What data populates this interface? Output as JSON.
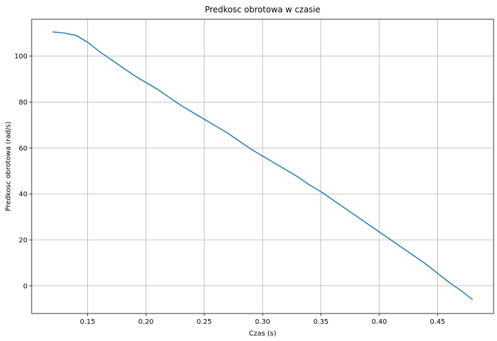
{
  "chart_data": {
    "type": "line",
    "title": "Predkosc obrotowa w czasie",
    "xlabel": "Czas (s)",
    "ylabel": "Predkosc obrotowa (rad/s)",
    "xlim": [
      0.102,
      0.498
    ],
    "ylim": [
      -12.0,
      116.0
    ],
    "xticks": [
      0.15,
      0.2,
      0.25,
      0.3,
      0.35,
      0.4,
      0.45
    ],
    "xtick_labels": [
      "0.15",
      "0.20",
      "0.25",
      "0.30",
      "0.35",
      "0.40",
      "0.45"
    ],
    "yticks": [
      0,
      20,
      40,
      60,
      80,
      100
    ],
    "ytick_labels": [
      "0",
      "20",
      "40",
      "60",
      "80",
      "100"
    ],
    "grid": true,
    "colors": {
      "line": "#1f77b4",
      "grid": "#b0b0b0",
      "axes": "#000000"
    },
    "series": [
      {
        "x": [
          0.12,
          0.13,
          0.14,
          0.145,
          0.15,
          0.16,
          0.17,
          0.18,
          0.19,
          0.2,
          0.21,
          0.22,
          0.23,
          0.24,
          0.25,
          0.26,
          0.27,
          0.28,
          0.29,
          0.3,
          0.31,
          0.32,
          0.33,
          0.34,
          0.35,
          0.36,
          0.37,
          0.38,
          0.39,
          0.4,
          0.41,
          0.42,
          0.43,
          0.44,
          0.45,
          0.46,
          0.47,
          0.48
        ],
        "y": [
          110.5,
          110.0,
          109.0,
          107.5,
          106.0,
          102.0,
          98.5,
          95.0,
          91.5,
          88.5,
          85.5,
          82.0,
          78.5,
          75.5,
          72.5,
          69.5,
          66.5,
          63.0,
          59.5,
          56.5,
          53.5,
          50.5,
          47.5,
          44.0,
          41.0,
          37.5,
          34.0,
          30.5,
          27.0,
          23.5,
          20.0,
          16.5,
          13.0,
          9.5,
          5.5,
          1.5,
          -2.0,
          -6.0
        ]
      }
    ]
  }
}
